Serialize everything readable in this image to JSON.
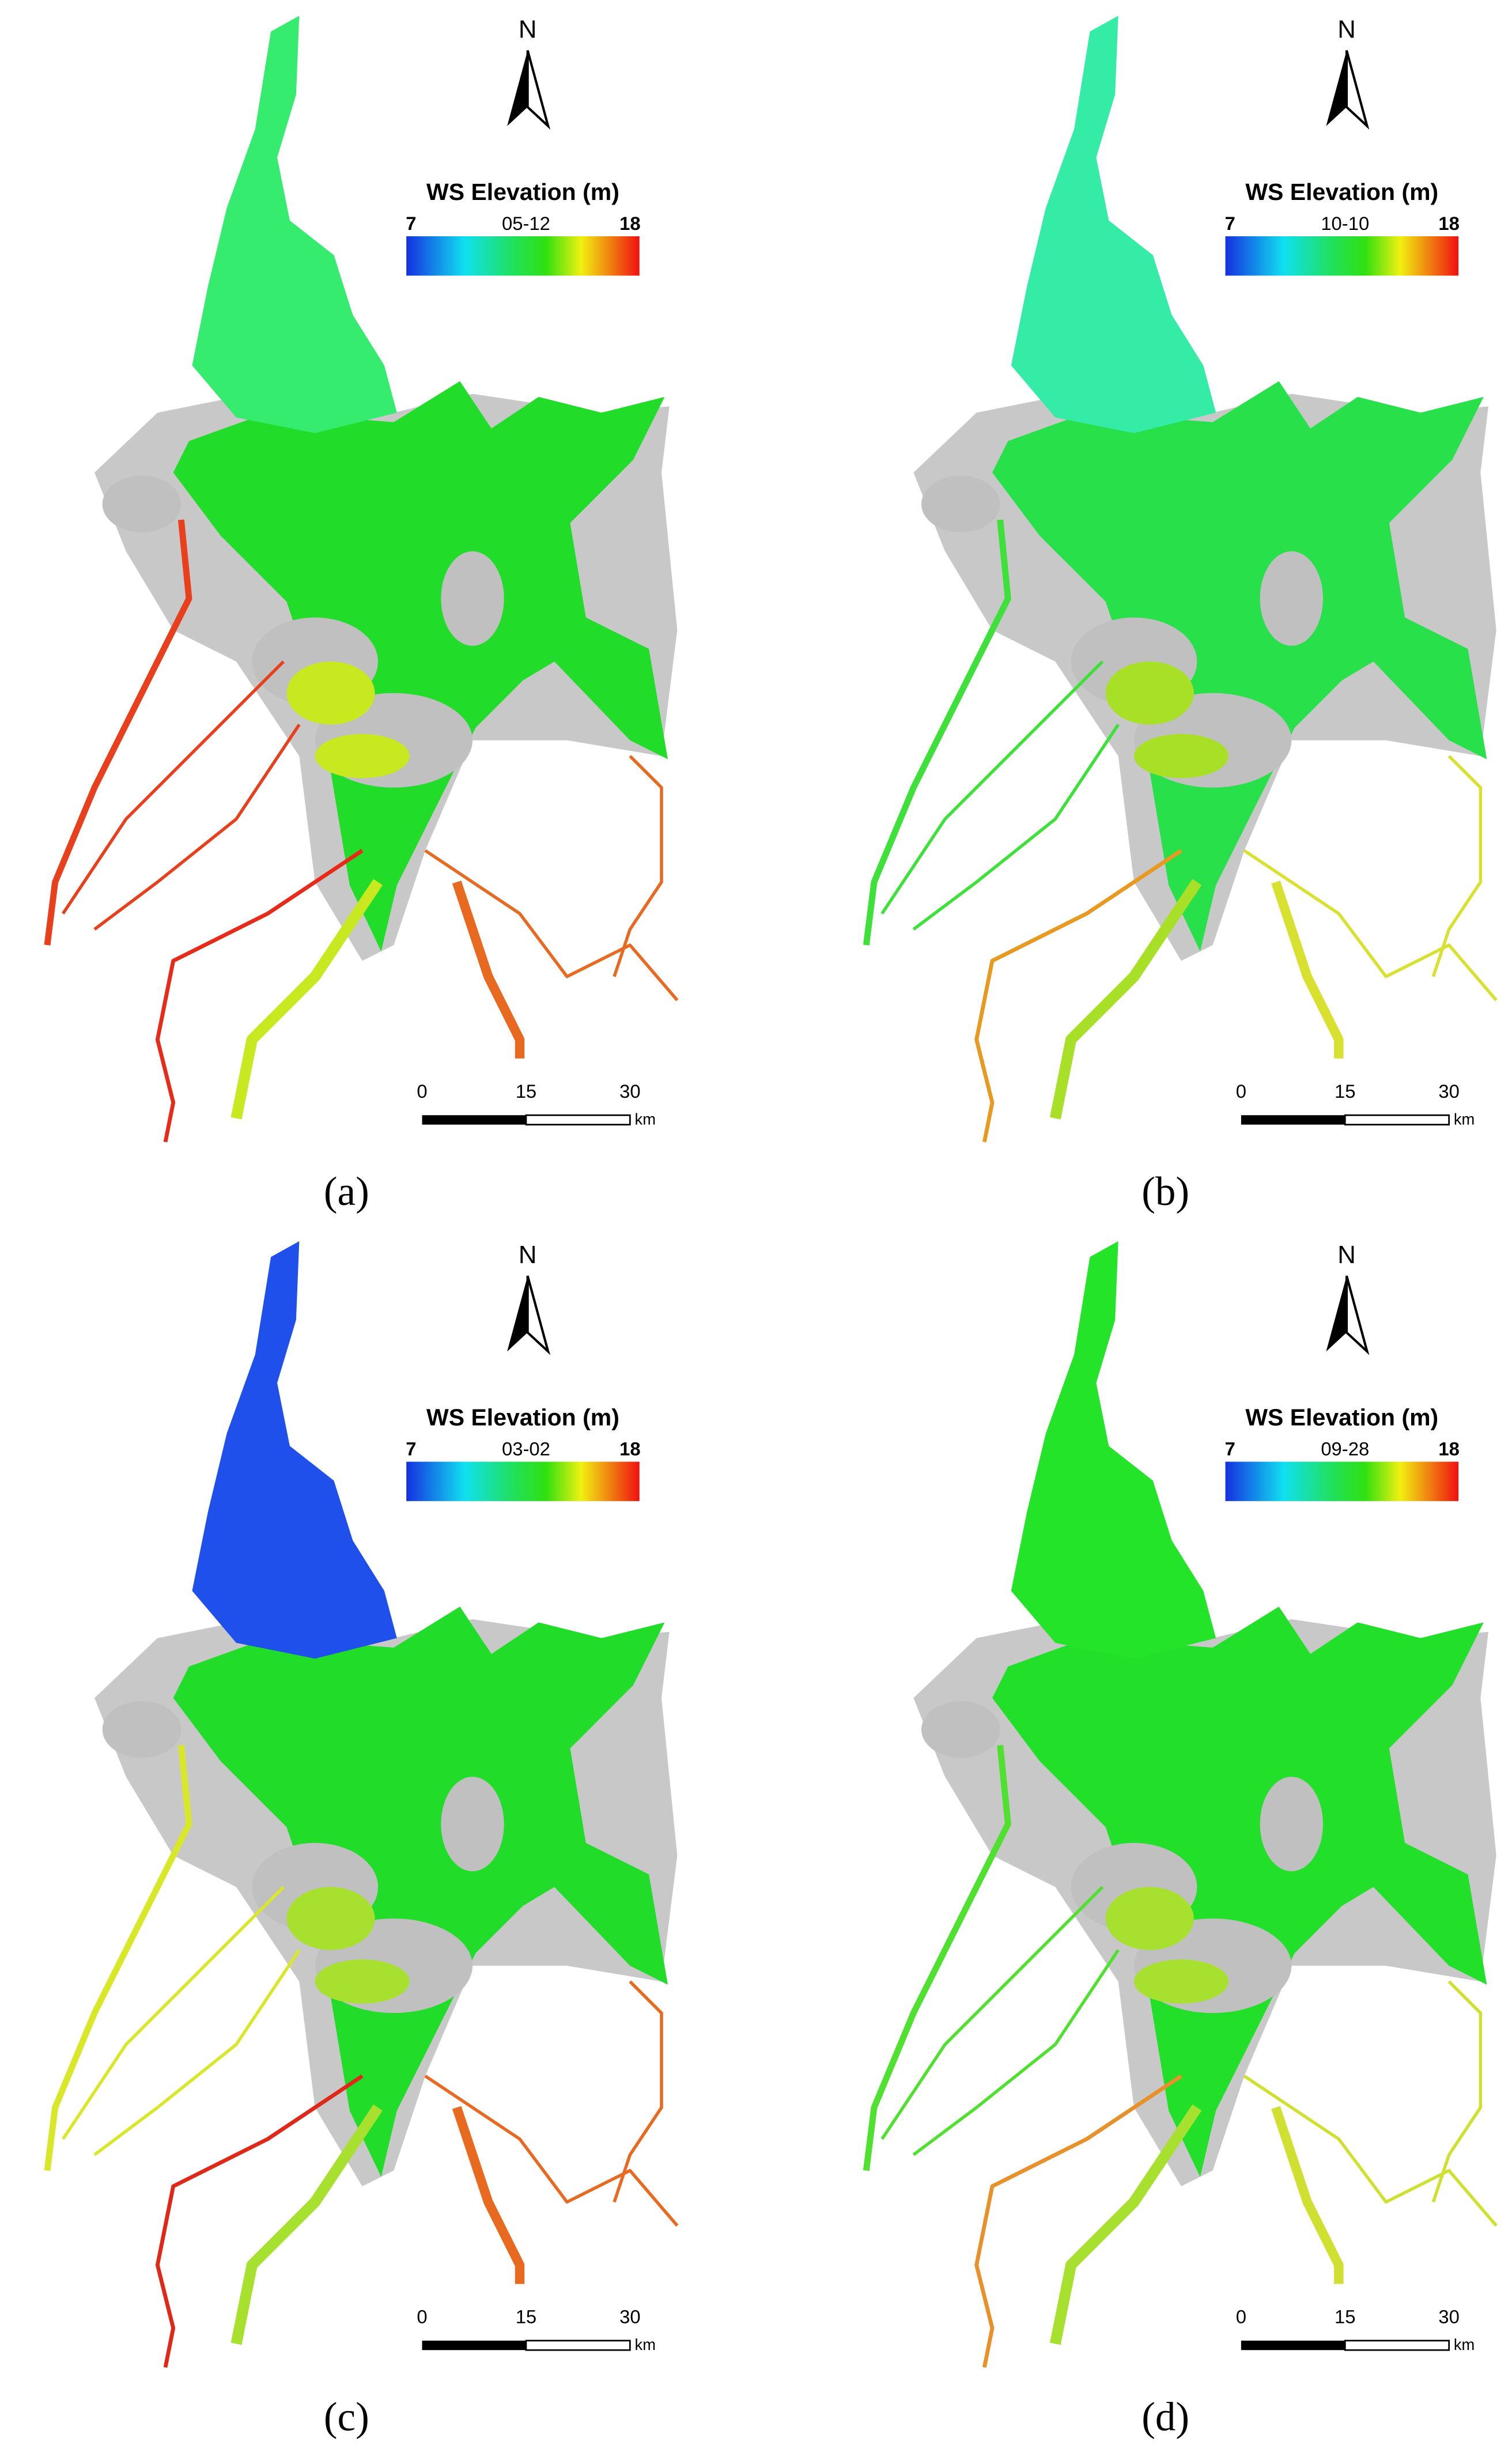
{
  "panels": [
    {
      "label": "(a)",
      "north": "N",
      "legend": {
        "title": "WS Elevation (m)",
        "min": 7,
        "max": 18,
        "date": "05-12"
      },
      "scale": {
        "labels": [
          0,
          15,
          30
        ],
        "unit": "km"
      }
    },
    {
      "label": "(b)",
      "north": "N",
      "legend": {
        "title": "WS Elevation (m)",
        "min": 7,
        "max": 18,
        "date": "10-10"
      },
      "scale": {
        "labels": [
          0,
          15,
          30
        ],
        "unit": "km"
      }
    },
    {
      "label": "(c)",
      "north": "N",
      "legend": {
        "title": "WS Elevation (m)",
        "min": 7,
        "max": 18,
        "date": "03-02"
      },
      "scale": {
        "labels": [
          0,
          15,
          30
        ],
        "unit": "km"
      }
    },
    {
      "label": "(d)",
      "north": "N",
      "legend": {
        "title": "WS Elevation (m)",
        "min": 7,
        "max": 18,
        "date": "09-28"
      },
      "scale": {
        "labels": [
          0,
          15,
          30
        ],
        "unit": "km"
      }
    }
  ]
}
